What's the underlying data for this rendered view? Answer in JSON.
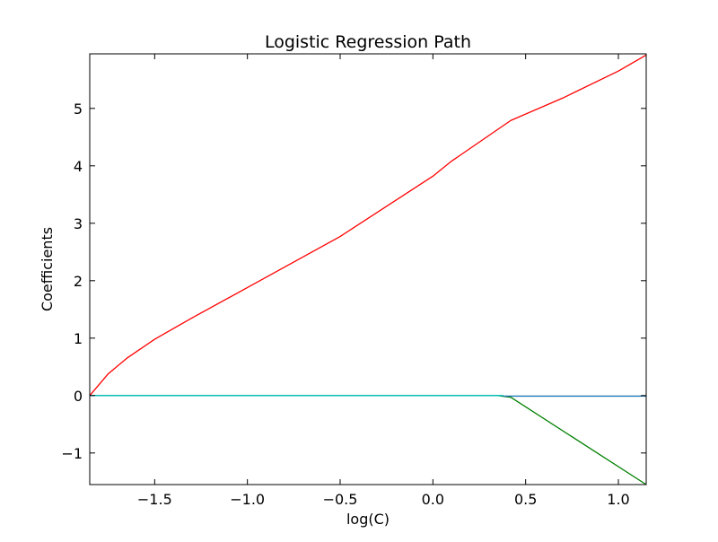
{
  "chart_data": {
    "type": "line",
    "title": "Logistic Regression Path",
    "xlabel": "log(C)",
    "ylabel": "Coefficients",
    "xlim": [
      -1.85,
      1.15
    ],
    "ylim": [
      -1.55,
      5.95
    ],
    "xticks": [
      -1.5,
      -1.0,
      -0.5,
      0.0,
      0.5,
      1.0
    ],
    "xtick_labels": [
      "−1.5",
      "−1.0",
      "−0.5",
      "0.0",
      "0.5",
      "1.0"
    ],
    "yticks": [
      -1,
      0,
      1,
      2,
      3,
      4,
      5
    ],
    "ytick_labels": [
      "−1",
      "0",
      "1",
      "2",
      "3",
      "4",
      "5"
    ],
    "grid": false,
    "series": [
      {
        "color": "#ff0000",
        "x": [
          -1.85,
          -1.75,
          -1.65,
          -1.5,
          -1.3,
          -1.0,
          -0.5,
          0.0,
          0.1,
          0.42,
          0.7,
          1.0,
          1.15
        ],
        "y": [
          0.0,
          0.38,
          0.65,
          0.98,
          1.35,
          1.88,
          2.77,
          3.82,
          4.08,
          4.79,
          5.18,
          5.65,
          5.93
        ]
      },
      {
        "color": "#008000",
        "x": [
          -1.85,
          0.35,
          0.42,
          1.15
        ],
        "y": [
          0.0,
          0.0,
          -0.03,
          -1.55
        ]
      },
      {
        "color": "#00bfbf",
        "x": [
          -1.85,
          0.38
        ],
        "y": [
          0.0,
          0.0
        ]
      },
      {
        "color": "#1f77b4",
        "x": [
          0.38,
          1.15
        ],
        "y": [
          -0.01,
          -0.01
        ]
      }
    ]
  }
}
